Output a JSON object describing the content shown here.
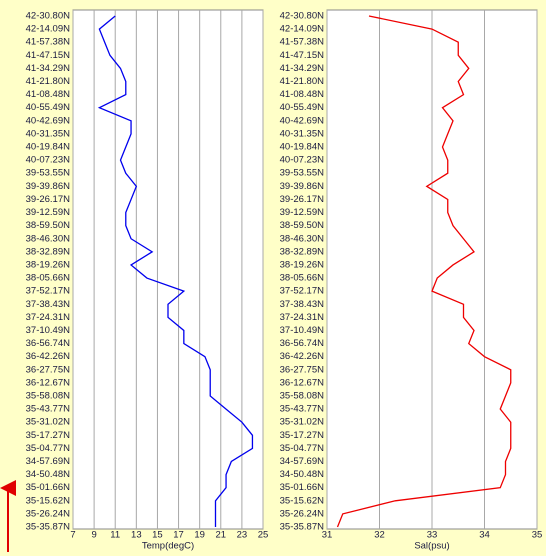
{
  "chart_data": [
    {
      "type": "line",
      "x_label": "Temp(degC)",
      "color": "#0000ee",
      "categories": [
        "42-30.80N",
        "42-14.09N",
        "41-57.38N",
        "41-47.15N",
        "41-34.29N",
        "41-21.80N",
        "41-08.48N",
        "40-55.49N",
        "40-42.69N",
        "40-31.35N",
        "40-19.84N",
        "40-07.23N",
        "39-53.55N",
        "39-39.86N",
        "39-26.17N",
        "39-12.59N",
        "38-59.50N",
        "38-46.30N",
        "38-32.89N",
        "38-19.26N",
        "38-05.66N",
        "37-52.17N",
        "37-38.43N",
        "37-24.31N",
        "37-10.49N",
        "36-56.74N",
        "36-42.26N",
        "36-27.75N",
        "36-12.67N",
        "35-58.08N",
        "35-43.77N",
        "35-31.02N",
        "35-17.27N",
        "35-04.77N",
        "34-57.69N",
        "34-50.48N",
        "35-01.66N",
        "35-15.62N",
        "35-26.24N",
        "35-35.87N"
      ],
      "values": [
        11,
        9.5,
        10,
        10.5,
        11.5,
        12,
        12,
        9.5,
        12.5,
        12.5,
        12,
        11.5,
        12,
        13,
        12.5,
        12,
        12,
        12.5,
        14.5,
        12.5,
        14,
        17.5,
        16,
        16,
        17.5,
        17.5,
        19.5,
        20,
        20,
        20,
        21.5,
        23,
        24,
        24,
        22,
        21.5,
        21.5,
        20.5,
        20.5,
        20.5
      ],
      "xlim": [
        7,
        25
      ],
      "xticks": [
        7,
        9,
        11,
        13,
        15,
        17,
        19,
        21,
        23,
        25
      ],
      "grid": true
    },
    {
      "type": "line",
      "x_label": "Sal(psu)",
      "color": "#ee0000",
      "categories": [
        "42-30.80N",
        "42-14.09N",
        "41-57.38N",
        "41-47.15N",
        "41-34.29N",
        "41-21.80N",
        "41-08.48N",
        "40-55.49N",
        "40-42.69N",
        "40-31.35N",
        "40-19.84N",
        "40-07.23N",
        "39-53.55N",
        "39-39.86N",
        "39-26.17N",
        "39-12.59N",
        "38-59.50N",
        "38-46.30N",
        "38-32.89N",
        "38-19.26N",
        "38-05.66N",
        "37-52.17N",
        "37-38.43N",
        "37-24.31N",
        "37-10.49N",
        "36-56.74N",
        "36-42.26N",
        "36-27.75N",
        "36-12.67N",
        "35-58.08N",
        "35-43.77N",
        "35-31.02N",
        "35-17.27N",
        "35-04.77N",
        "34-57.69N",
        "34-50.48N",
        "35-01.66N",
        "35-15.62N",
        "35-26.24N",
        "35-35.87N"
      ],
      "values": [
        31.8,
        33,
        33.5,
        33.5,
        33.7,
        33.5,
        33.6,
        33.2,
        33.4,
        33.3,
        33.2,
        33.3,
        33.3,
        32.9,
        33.3,
        33.3,
        33.4,
        33.6,
        33.8,
        33.4,
        33.1,
        33,
        33.6,
        33.6,
        33.8,
        33.7,
        34,
        34.5,
        34.5,
        34.4,
        34.3,
        34.5,
        34.5,
        34.5,
        34.4,
        34.4,
        34.3,
        32.3,
        31.3,
        31.2
      ],
      "xlim": [
        31,
        35
      ],
      "xticks": [
        31,
        32,
        33,
        34,
        35
      ],
      "grid": true
    }
  ]
}
